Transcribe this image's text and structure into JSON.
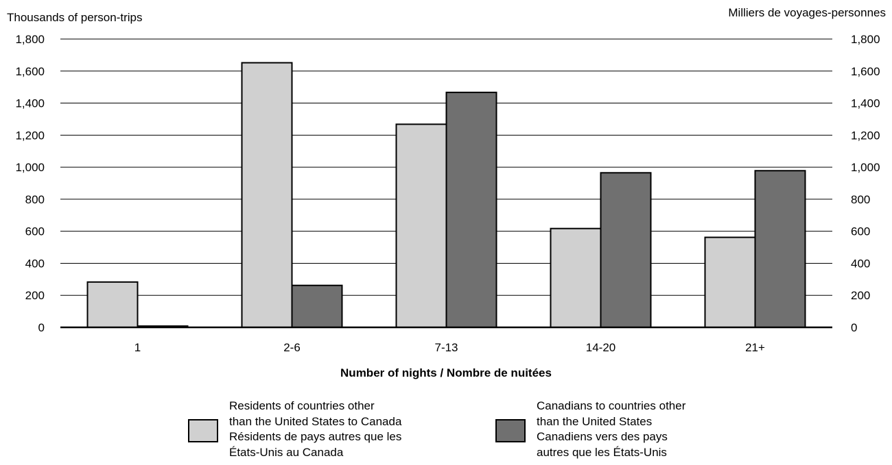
{
  "chart_data": {
    "type": "bar",
    "ylabel_left": "Thousands of person-trips",
    "ylabel_right": "Milliers de voyages-personnes",
    "xlabel": "Number of nights / Nombre de nuitées",
    "categories": [
      "1",
      "2-6",
      "7-13",
      "14-20",
      "21+"
    ],
    "ylim": [
      0,
      1800
    ],
    "yticks": [
      0,
      200,
      400,
      600,
      800,
      1000,
      1200,
      1400,
      1600,
      1800
    ],
    "ytick_labels": [
      "0",
      "200",
      "400",
      "600",
      "800",
      "1,000",
      "1,200",
      "1,400",
      "1,600",
      "1,800"
    ],
    "grid": true,
    "legend_position": "bottom",
    "series": [
      {
        "name": "Residents of countries other than the United States to Canada / Résidents de pays autres que les États-Unis au Canada",
        "legend_lines": [
          "Residents of countries other",
          "than the United States to Canada",
          "Résidents de pays autres que les",
          "États-Unis au Canada"
        ],
        "color": "#d0d0d0",
        "values": [
          283,
          1652,
          1268,
          617,
          562
        ]
      },
      {
        "name": "Canadians to countries other than the United States / Canadiens vers des pays autres que les États-Unis",
        "legend_lines": [
          "Canadians to countries other",
          "than the United States",
          "Canadiens vers des pays",
          "autres que les États-Unis"
        ],
        "color": "#707070",
        "values": [
          8,
          262,
          1467,
          965,
          978
        ]
      }
    ]
  }
}
